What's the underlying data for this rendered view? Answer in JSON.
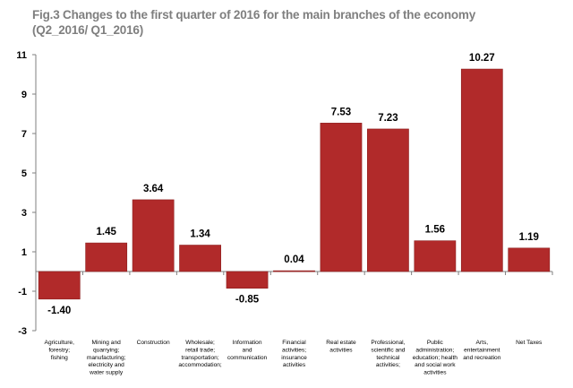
{
  "title_line1": "Fig.3 Changes to the first quarter of 2016 for the main branches of the economy",
  "title_line2": "(Q2_2016/ Q1_2016)",
  "colors": {
    "bar": "#b12a2a",
    "bar_edge": "#8c1f1f",
    "axis": "#7f7f7f",
    "title": "#7f7f7f"
  },
  "chart_data": {
    "type": "bar",
    "title": "Fig.3 Changes to the first quarter of 2016 for the main branches of the economy (Q2_2016/ Q1_2016)",
    "xlabel": "",
    "ylabel": "",
    "ylim": [
      -3,
      11
    ],
    "yticks": [
      -3,
      -1,
      1,
      3,
      5,
      7,
      9,
      11
    ],
    "grid": false,
    "legend": "none",
    "categories": [
      "Agriculture, forestry; fishing",
      "Mining and quarrying; manufacturing; electricity and water supply",
      "Construction",
      "Wholesale; retail trade; transportation; accommodation;",
      "Information and communication",
      "Financial activities; insurance activities",
      "Real estate activities",
      "Professional, scientific and technical activities;",
      "Public administration; education; health and social work activities",
      "Arts, entertainment and recreation",
      "Net Taxes"
    ],
    "category_lines": [
      [
        "Agriculture,",
        "forestry;",
        "fishing"
      ],
      [
        "Mining and",
        "quarrying;",
        "manufacturing;",
        "electricity and",
        "water supply"
      ],
      [
        "Construction"
      ],
      [
        "Wholesale;",
        "retail trade;",
        "transportation;",
        "accommodation;"
      ],
      [
        "Information",
        "and",
        "communication"
      ],
      [
        "Financial",
        "activities;",
        "insurance",
        "activities"
      ],
      [
        "Real estate",
        "activities"
      ],
      [
        "Professional,",
        "scientific and",
        "technical",
        "activities;"
      ],
      [
        "Public",
        "administration;",
        "education; health",
        "and social work",
        "activities"
      ],
      [
        "Arts,",
        "entertainment",
        "and recreation"
      ],
      [
        "Net Taxes"
      ]
    ],
    "values": [
      -1.4,
      1.45,
      3.64,
      1.34,
      -0.85,
      0.04,
      7.53,
      7.23,
      1.56,
      10.27,
      1.19
    ],
    "value_labels": [
      "-1.40",
      "1.45",
      "3.64",
      "1.34",
      "-0.85",
      "0.04",
      "7.53",
      "7.23",
      "1.56",
      "10.27",
      "1.19"
    ]
  }
}
